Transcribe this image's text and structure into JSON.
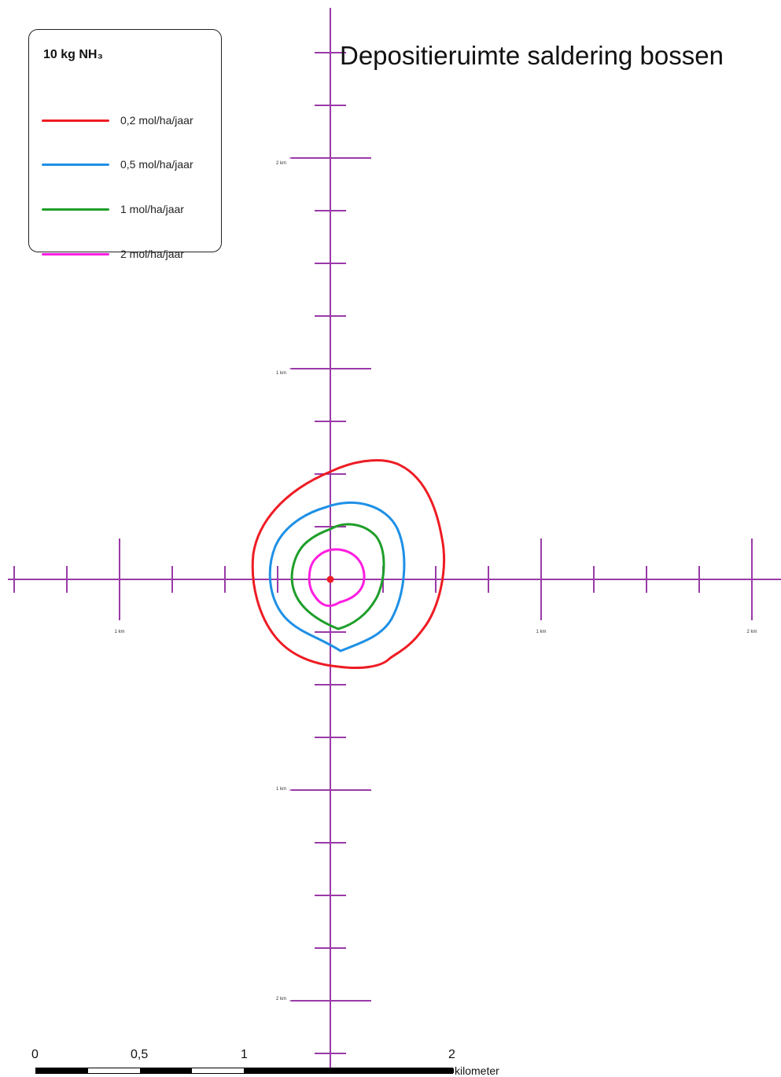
{
  "title": "Depositieruimte saldering bossen",
  "legend": {
    "title": "10 kg NH₃",
    "items": [
      {
        "label": "0,2 mol/ha/jaar",
        "color": "#ee1c24"
      },
      {
        "label": "0,5 mol/ha/jaar",
        "color": "#1e90e6"
      },
      {
        "label": "1 mol/ha/jaar",
        "color": "#1f9e2a"
      },
      {
        "label": "2 mol/ha/jaar",
        "color": "#ff1ee0"
      }
    ]
  },
  "axis": {
    "color": "#9a3aa8",
    "tick_labels": {
      "north_2": "2 km",
      "north_1": "1 km",
      "south_1": "1 km",
      "south_2": "2 km",
      "west_1": "1 km",
      "east_1": "1 km",
      "east_2": "2 km"
    }
  },
  "source_marker_color": "#ee1c24",
  "scale_bar": {
    "labels": [
      "0",
      "0,5",
      "1",
      "2"
    ],
    "unit": "kilometer"
  }
}
